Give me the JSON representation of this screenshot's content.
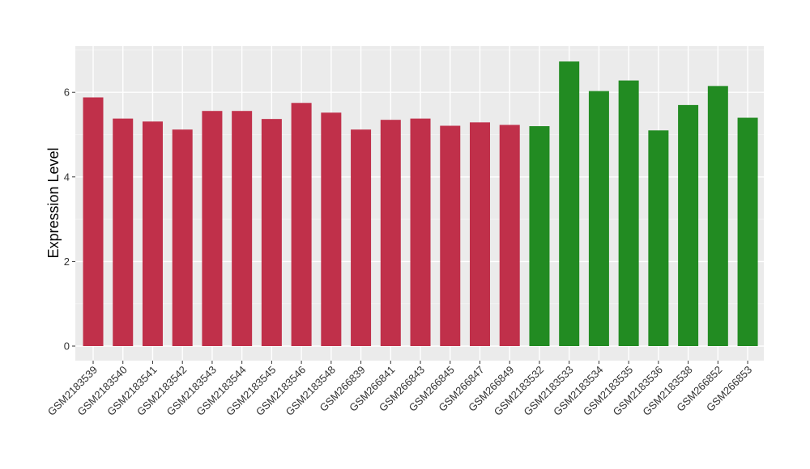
{
  "chart_data": {
    "type": "bar",
    "title": "",
    "xlabel": "",
    "ylabel": "Expression Level",
    "ylim": [
      0,
      7.1
    ],
    "yticks": [
      0,
      2,
      4,
      6
    ],
    "ytick_labels": [
      "0",
      "2",
      "4",
      "6"
    ],
    "grid": true,
    "legend": "none",
    "colors": {
      "group_a": "#c0304a",
      "group_b": "#228b22",
      "panel": "#ebebeb",
      "grid": "#ffffff"
    },
    "categories": [
      "GSM2183539",
      "GSM2183540",
      "GSM2183541",
      "GSM2183542",
      "GSM2183543",
      "GSM2183544",
      "GSM2183545",
      "GSM2183546",
      "GSM2183548",
      "GSM266839",
      "GSM266841",
      "GSM266843",
      "GSM266845",
      "GSM266847",
      "GSM266849",
      "GSM2183532",
      "GSM2183533",
      "GSM2183534",
      "GSM2183535",
      "GSM2183536",
      "GSM2183538",
      "GSM266852",
      "GSM266853"
    ],
    "values": [
      5.88,
      5.38,
      5.31,
      5.12,
      5.56,
      5.56,
      5.37,
      5.75,
      5.52,
      5.12,
      5.35,
      5.38,
      5.21,
      5.29,
      5.23,
      5.2,
      6.73,
      6.03,
      6.28,
      5.1,
      5.7,
      6.15,
      5.4
    ],
    "groups": [
      "a",
      "a",
      "a",
      "a",
      "a",
      "a",
      "a",
      "a",
      "a",
      "a",
      "a",
      "a",
      "a",
      "a",
      "a",
      "b",
      "b",
      "b",
      "b",
      "b",
      "b",
      "b",
      "b"
    ]
  }
}
